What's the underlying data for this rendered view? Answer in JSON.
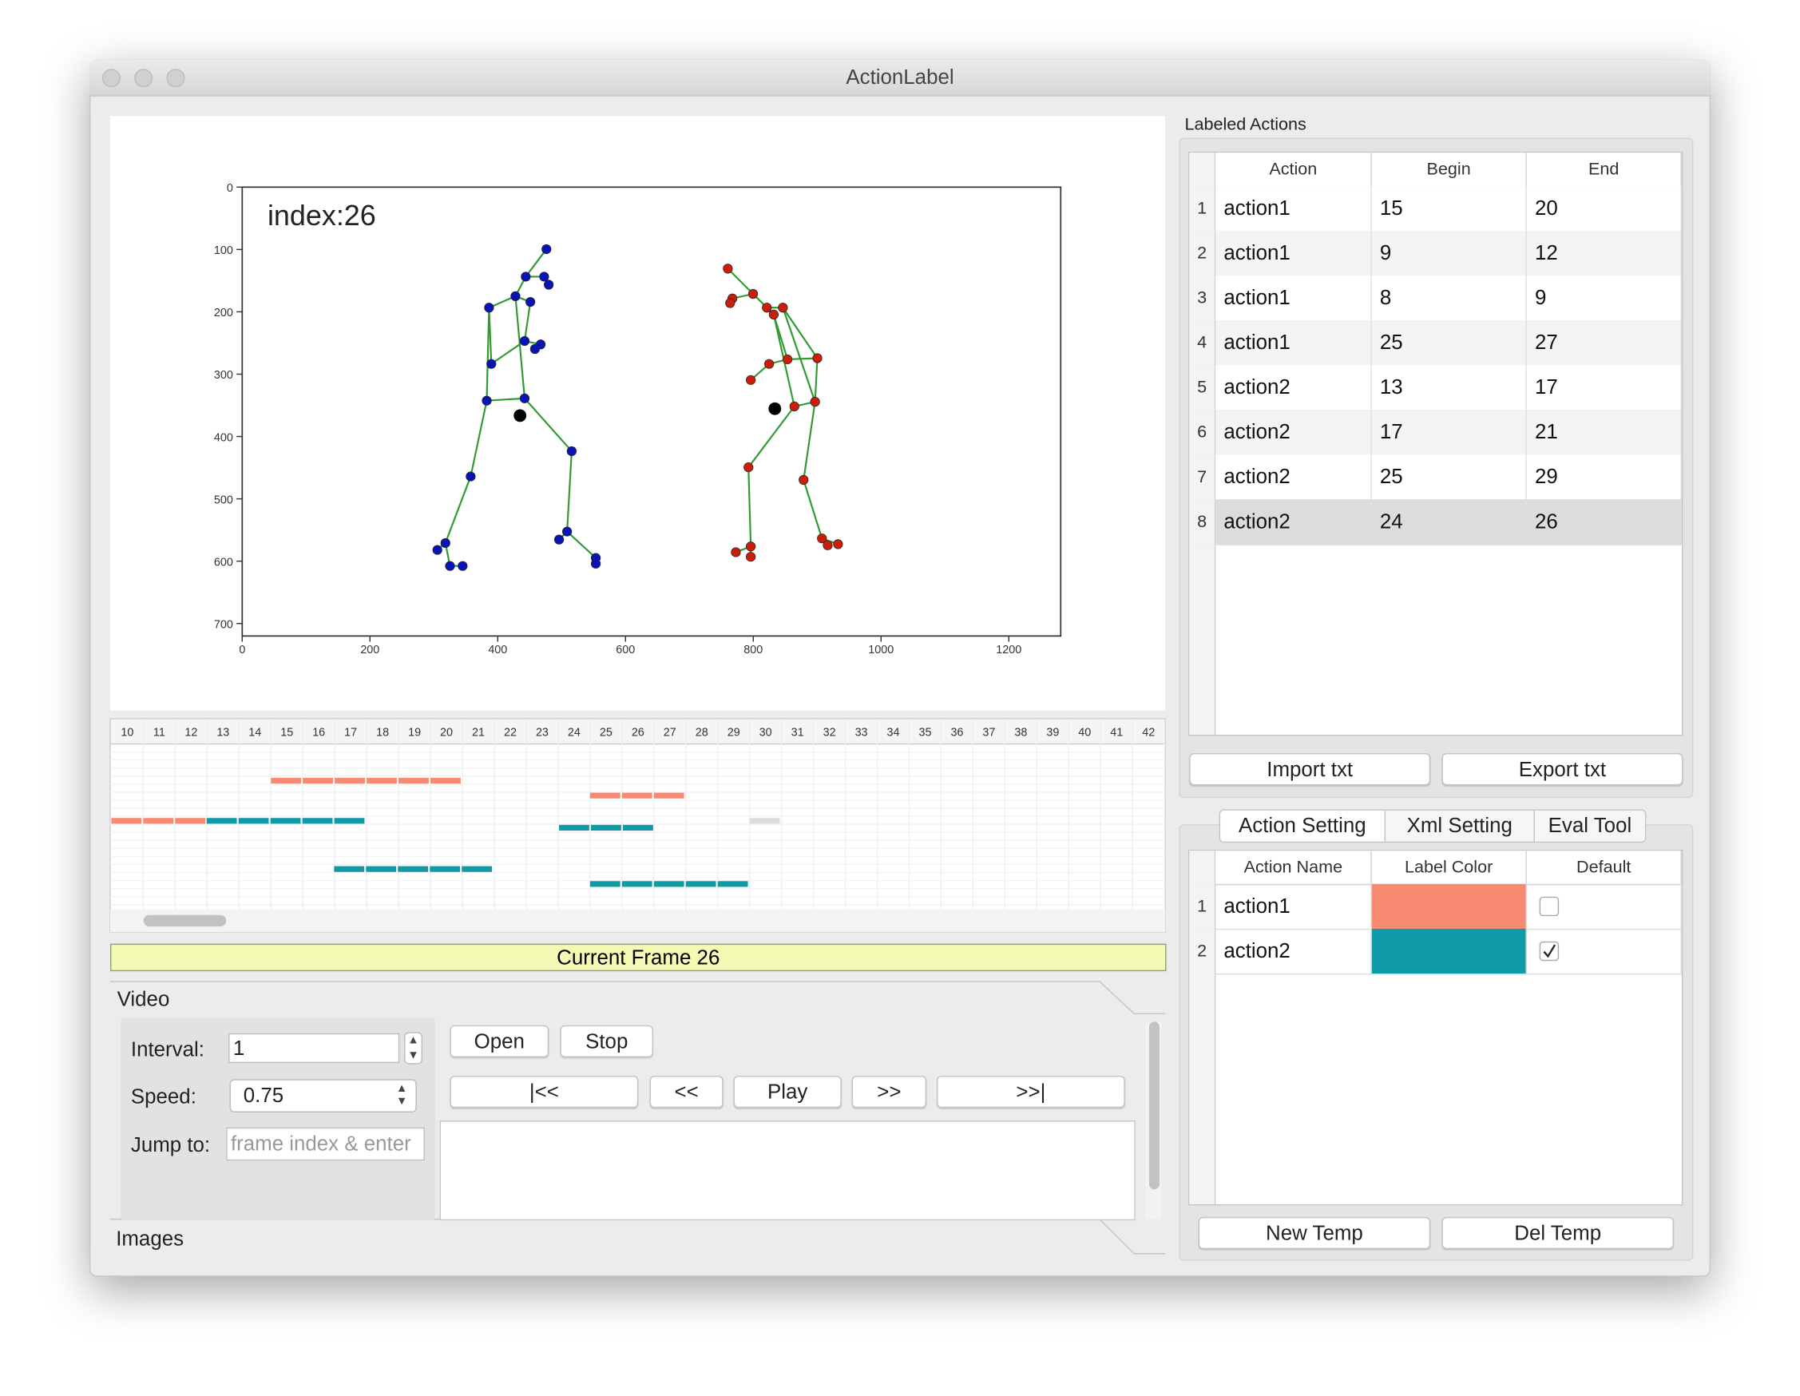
{
  "window": {
    "title": "ActionLabel"
  },
  "plot": {
    "annotation": "index:26",
    "yticks": [
      0,
      100,
      200,
      300,
      400,
      500,
      600,
      700
    ],
    "xticks": [
      0,
      200,
      400,
      600,
      800,
      1000,
      1200
    ]
  },
  "timeline": {
    "frames": [
      10,
      11,
      12,
      13,
      14,
      15,
      16,
      17,
      18,
      19,
      20,
      21,
      22,
      23,
      24,
      25,
      26,
      27,
      28,
      29,
      30,
      31,
      32,
      33,
      34,
      35,
      36,
      37,
      38,
      39,
      40,
      41,
      42
    ]
  },
  "current_frame": "Current Frame 26",
  "video": {
    "title": "Video",
    "interval_label": "Interval:",
    "interval_value": "1",
    "speed_label": "Speed:",
    "speed_value": "0.75",
    "jump_label": "Jump to:",
    "jump_placeholder": "frame index & enter",
    "buttons": {
      "open": "Open",
      "stop": "Stop",
      "first": "|<<",
      "prev": "<<",
      "play": "Play",
      "next": ">>",
      "last": ">>|"
    }
  },
  "images": {
    "title": "Images"
  },
  "labeled_actions": {
    "title": "Labeled Actions",
    "columns": [
      "Action",
      "Begin",
      "End"
    ],
    "rows": [
      {
        "no": 1,
        "action": "action1",
        "begin": 15,
        "end": 20
      },
      {
        "no": 2,
        "action": "action1",
        "begin": 9,
        "end": 12
      },
      {
        "no": 3,
        "action": "action1",
        "begin": 8,
        "end": 9
      },
      {
        "no": 4,
        "action": "action1",
        "begin": 25,
        "end": 27
      },
      {
        "no": 5,
        "action": "action2",
        "begin": 13,
        "end": 17
      },
      {
        "no": 6,
        "action": "action2",
        "begin": 17,
        "end": 21
      },
      {
        "no": 7,
        "action": "action2",
        "begin": 25,
        "end": 29
      },
      {
        "no": 8,
        "action": "action2",
        "begin": 24,
        "end": 26
      }
    ],
    "selected_row": 8,
    "buttons": {
      "import": "Import txt",
      "export": "Export txt"
    }
  },
  "tabs": [
    "Action Setting",
    "Xml Setting",
    "Eval Tool"
  ],
  "action_setting": {
    "columns": [
      "Action Name",
      "Label Color",
      "Default"
    ],
    "rows": [
      {
        "no": 1,
        "name": "action1",
        "color": "#f98a72",
        "default": false
      },
      {
        "no": 2,
        "name": "action2",
        "color": "#0f9aa8",
        "default": true
      }
    ],
    "buttons": {
      "new": "New Temp",
      "delete": "Del Temp"
    }
  }
}
